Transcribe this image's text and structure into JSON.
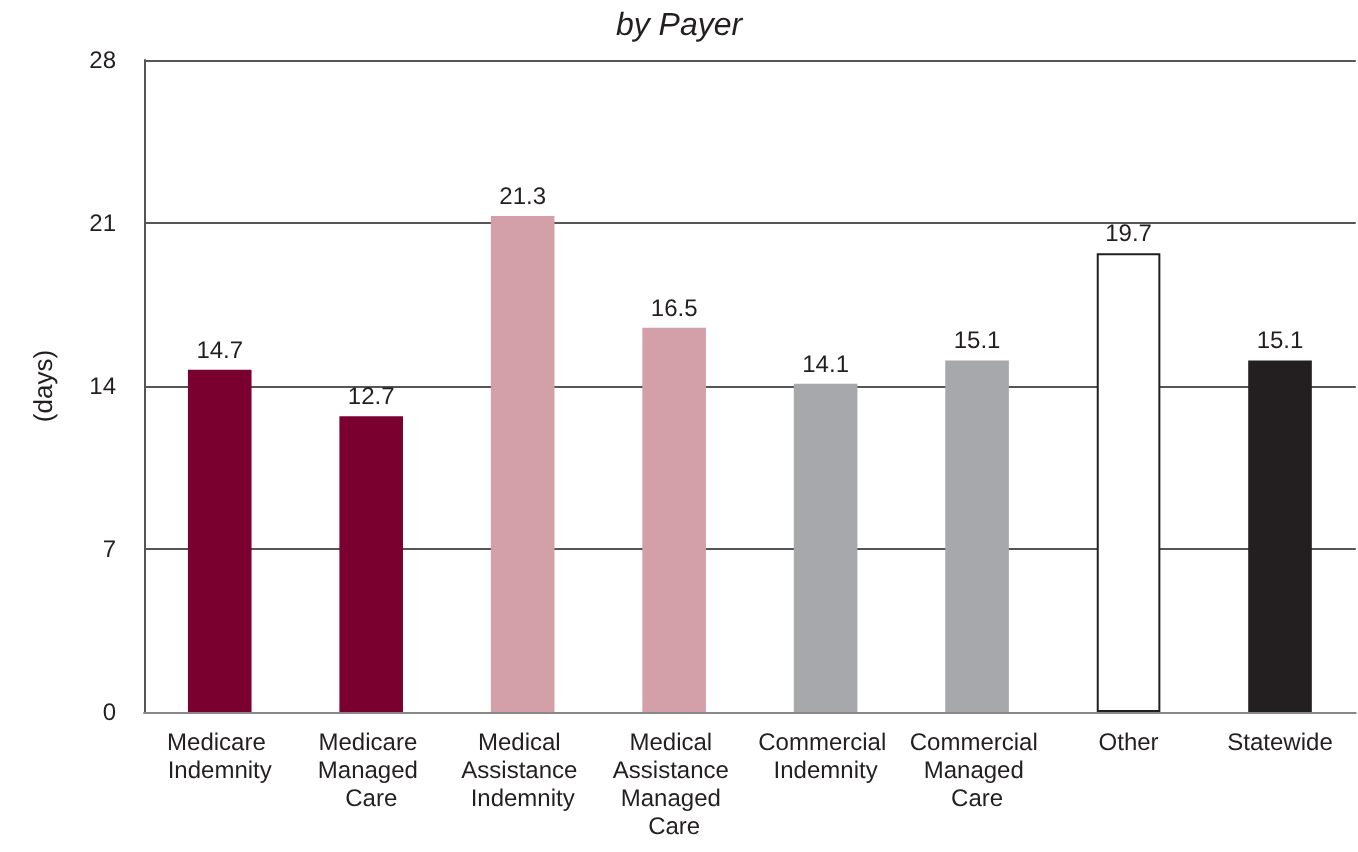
{
  "chart_data": {
    "type": "bar",
    "title": "by Payer",
    "ylabel": "(days)",
    "categories": [
      "Medicare Indemnity",
      "Medicare Managed Care",
      "Medical Assistance Indemnity",
      "Medical Assistance Managed Care",
      "Commercial Indemnity",
      "Commercial Managed Care",
      "Other",
      "Statewide"
    ],
    "values": [
      14.7,
      12.7,
      21.3,
      16.5,
      14.1,
      15.1,
      19.7,
      15.1
    ],
    "colors": [
      "#7a0030",
      "#7a0030",
      "#d3a0aa",
      "#d3a0aa",
      "#a7a8ab",
      "#a7a8ab",
      "#ffffff",
      "#231f20"
    ],
    "ylim": [
      0,
      28
    ],
    "yticks": [
      0,
      7,
      14,
      21,
      28
    ],
    "grid": "y",
    "data_labels": true
  }
}
